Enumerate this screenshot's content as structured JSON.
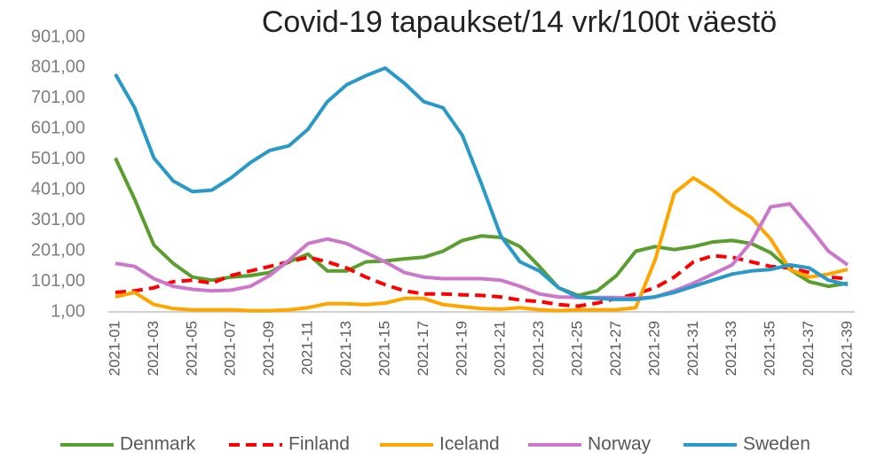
{
  "chart_data": {
    "type": "line",
    "title": "Covid-19 tapaukset/14 vrk/100t väestö",
    "categories": [
      "2021-01",
      null,
      "2021-03",
      null,
      "2021-05",
      null,
      "2021-07",
      null,
      "2021-09",
      null,
      "2021-11",
      null,
      "2021-13",
      null,
      "2021-15",
      null,
      "2021-17",
      null,
      "2021-19",
      null,
      "2021-21",
      null,
      "2021-23",
      null,
      "2021-25",
      null,
      "2021-27",
      null,
      "2021-29",
      null,
      "2021-31",
      null,
      "2021-33",
      null,
      "2021-35",
      null,
      "2021-37",
      null,
      "2021-39"
    ],
    "ylim": [
      1,
      901
    ],
    "yticks": [
      {
        "value": 1,
        "label": "1,00"
      },
      {
        "value": 101,
        "label": "101,00"
      },
      {
        "value": 201,
        "label": "201,00"
      },
      {
        "value": 301,
        "label": "301,00"
      },
      {
        "value": 401,
        "label": "401,00"
      },
      {
        "value": 501,
        "label": "501,00"
      },
      {
        "value": 601,
        "label": "601,00"
      },
      {
        "value": 701,
        "label": "701,00"
      },
      {
        "value": 801,
        "label": "801,00"
      },
      {
        "value": 901,
        "label": "901,00"
      }
    ],
    "grid": false,
    "legend": "bottom",
    "series": [
      {
        "name": "Denmark",
        "color": "#5a9e2f",
        "values": [
          505,
          370,
          220,
          160,
          115,
          105,
          115,
          120,
          130,
          165,
          190,
          135,
          135,
          165,
          168,
          175,
          180,
          200,
          235,
          250,
          245,
          215,
          150,
          80,
          55,
          70,
          120,
          200,
          215,
          205,
          215,
          230,
          235,
          225,
          195,
          140,
          100,
          85,
          95
        ]
      },
      {
        "name": "Finland",
        "color": "#ff0000",
        "line_style": "dashed",
        "values": [
          65,
          70,
          80,
          100,
          105,
          95,
          120,
          135,
          150,
          165,
          180,
          165,
          145,
          115,
          90,
          70,
          60,
          60,
          57,
          55,
          50,
          40,
          35,
          25,
          20,
          30,
          45,
          60,
          80,
          115,
          165,
          185,
          180,
          165,
          150,
          145,
          130,
          115,
          110
        ]
      },
      {
        "name": "Iceland",
        "color": "#ffa500",
        "values": [
          50,
          65,
          25,
          12,
          8,
          8,
          8,
          5,
          5,
          8,
          15,
          28,
          28,
          25,
          30,
          45,
          45,
          25,
          18,
          12,
          10,
          15,
          8,
          5,
          8,
          8,
          8,
          15,
          170,
          390,
          440,
          400,
          350,
          310,
          240,
          140,
          115,
          125,
          140
        ]
      },
      {
        "name": "Norway",
        "color": "#cc77cc",
        "values": [
          160,
          150,
          110,
          85,
          75,
          70,
          72,
          85,
          120,
          170,
          225,
          240,
          225,
          195,
          165,
          130,
          115,
          110,
          110,
          110,
          105,
          85,
          60,
          50,
          48,
          48,
          48,
          45,
          50,
          70,
          95,
          125,
          155,
          230,
          345,
          355,
          280,
          200,
          155
        ]
      },
      {
        "name": "Sweden",
        "color": "#2899c8",
        "values": [
          780,
          670,
          505,
          430,
          395,
          400,
          440,
          490,
          530,
          545,
          600,
          690,
          745,
          775,
          800,
          750,
          690,
          670,
          580,
          420,
          250,
          165,
          135,
          80,
          50,
          45,
          42,
          42,
          50,
          65,
          85,
          105,
          125,
          135,
          140,
          155,
          145,
          105,
          90
        ]
      }
    ]
  }
}
